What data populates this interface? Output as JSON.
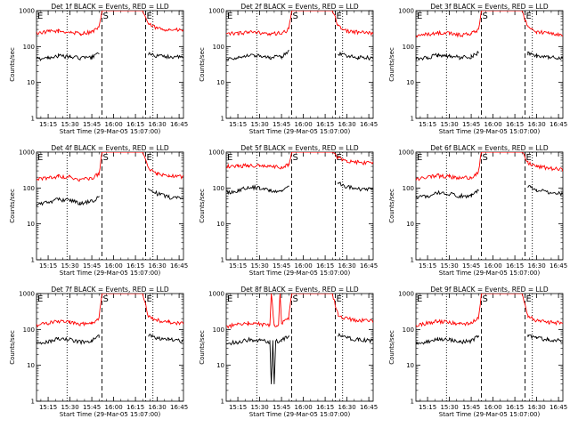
{
  "figure": {
    "background": "#ffffff",
    "axis_color": "#000000"
  },
  "chart_data": [
    {
      "type": "line",
      "title": "Det 1f BLACK = Events, RED = LLD",
      "xlabel": "Start Time (29-Mar-05 15:07:00)",
      "ylabel": "Counts/sec",
      "yscale": "log",
      "ylim": [
        1,
        1000
      ],
      "xlim": [
        "15:07",
        "16:48"
      ],
      "x_ticks": [
        "15:15",
        "15:30",
        "15:45",
        "16:00",
        "16:15",
        "16:30",
        "16:45"
      ],
      "y_ticks": [
        "1",
        "10",
        "100",
        "1000"
      ],
      "markers": [
        {
          "time": "15:28",
          "style": "dotted",
          "label": ""
        },
        {
          "time": "15:52",
          "style": "dashed",
          "label": "S"
        },
        {
          "time": "16:22",
          "style": "dashed",
          "label": "E"
        },
        {
          "time": "16:27",
          "style": "dotted",
          "label": ""
        }
      ],
      "corner_label": "E",
      "series": [
        {
          "color": "#ff0000",
          "x": [
            "15:07",
            "15:15",
            "15:22",
            "15:30",
            "15:37",
            "15:45",
            "15:50",
            "15:52",
            "16:20",
            "16:24",
            "16:30",
            "16:38",
            "16:48"
          ],
          "y": [
            240,
            260,
            270,
            250,
            230,
            260,
            330,
            1000,
            1000,
            420,
            320,
            300,
            280
          ]
        },
        {
          "color": "#000000",
          "x": [
            "15:07",
            "15:15",
            "15:22",
            "15:30",
            "15:37",
            "15:45",
            "15:50",
            "16:24",
            "16:30",
            "16:38",
            "16:48"
          ],
          "y": [
            45,
            50,
            55,
            52,
            48,
            50,
            70,
            65,
            55,
            52,
            50
          ]
        }
      ]
    },
    {
      "type": "line",
      "title": "Det 2f BLACK = Events, RED = LLD",
      "xlabel": "Start Time (29-Mar-05 15:07:00)",
      "ylabel": "Counts/sec",
      "yscale": "log",
      "ylim": [
        1,
        1000
      ],
      "xlim": [
        "15:07",
        "16:48"
      ],
      "x_ticks": [
        "15:15",
        "15:30",
        "15:45",
        "16:00",
        "16:15",
        "16:30",
        "16:45"
      ],
      "y_ticks": [
        "1",
        "10",
        "100",
        "1000"
      ],
      "markers": [
        {
          "time": "15:28",
          "style": "dotted",
          "label": ""
        },
        {
          "time": "15:52",
          "style": "dashed",
          "label": "S"
        },
        {
          "time": "16:22",
          "style": "dashed",
          "label": "E"
        },
        {
          "time": "16:27",
          "style": "dotted",
          "label": ""
        }
      ],
      "corner_label": "E",
      "series": [
        {
          "color": "#ff0000",
          "x": [
            "15:07",
            "15:15",
            "15:22",
            "15:30",
            "15:37",
            "15:45",
            "15:50",
            "15:52",
            "16:20",
            "16:24",
            "16:30",
            "16:38",
            "16:48"
          ],
          "y": [
            220,
            240,
            250,
            240,
            220,
            240,
            300,
            1000,
            1000,
            380,
            270,
            250,
            230
          ]
        },
        {
          "color": "#000000",
          "x": [
            "15:07",
            "15:15",
            "15:22",
            "15:30",
            "15:37",
            "15:45",
            "15:50",
            "16:24",
            "16:30",
            "16:38",
            "16:48"
          ],
          "y": [
            45,
            50,
            58,
            55,
            50,
            52,
            75,
            65,
            55,
            50,
            48
          ]
        }
      ]
    },
    {
      "type": "line",
      "title": "Det 3f BLACK = Events, RED = LLD",
      "xlabel": "Start Time (29-Mar-05 15:07:00)",
      "ylabel": "Counts/sec",
      "yscale": "log",
      "ylim": [
        1,
        1000
      ],
      "xlim": [
        "15:07",
        "16:48"
      ],
      "x_ticks": [
        "15:15",
        "15:30",
        "15:45",
        "16:00",
        "16:15",
        "16:30",
        "16:45"
      ],
      "y_ticks": [
        "1",
        "10",
        "100",
        "1000"
      ],
      "markers": [
        {
          "time": "15:28",
          "style": "dotted",
          "label": ""
        },
        {
          "time": "15:52",
          "style": "dashed",
          "label": "S"
        },
        {
          "time": "16:22",
          "style": "dashed",
          "label": "E"
        },
        {
          "time": "16:27",
          "style": "dotted",
          "label": ""
        }
      ],
      "corner_label": "E",
      "series": [
        {
          "color": "#ff0000",
          "x": [
            "15:07",
            "15:15",
            "15:22",
            "15:30",
            "15:37",
            "15:45",
            "15:50",
            "15:52",
            "16:20",
            "16:24",
            "16:30",
            "16:38",
            "16:48"
          ],
          "y": [
            200,
            220,
            240,
            230,
            210,
            230,
            280,
            1000,
            1000,
            350,
            260,
            240,
            220
          ]
        },
        {
          "color": "#000000",
          "x": [
            "15:07",
            "15:15",
            "15:22",
            "15:30",
            "15:37",
            "15:45",
            "15:50",
            "16:24",
            "16:30",
            "16:38",
            "16:48"
          ],
          "y": [
            45,
            50,
            58,
            55,
            50,
            52,
            70,
            65,
            55,
            50,
            48
          ]
        }
      ]
    },
    {
      "type": "line",
      "title": "Det 4f BLACK = Events, RED = LLD",
      "xlabel": "Start Time (29-Mar-05 15:07:00)",
      "ylabel": "Counts/sec",
      "yscale": "log",
      "ylim": [
        1,
        1000
      ],
      "xlim": [
        "15:07",
        "16:48"
      ],
      "x_ticks": [
        "15:15",
        "15:30",
        "15:45",
        "16:00",
        "16:15",
        "16:30",
        "16:45"
      ],
      "y_ticks": [
        "1",
        "10",
        "100",
        "1000"
      ],
      "markers": [
        {
          "time": "15:28",
          "style": "dotted",
          "label": ""
        },
        {
          "time": "15:52",
          "style": "dashed",
          "label": "S"
        },
        {
          "time": "16:22",
          "style": "dashed",
          "label": "E"
        },
        {
          "time": "16:27",
          "style": "dotted",
          "label": ""
        }
      ],
      "corner_label": "E",
      "series": [
        {
          "color": "#ff0000",
          "x": [
            "15:07",
            "15:15",
            "15:22",
            "15:30",
            "15:37",
            "15:45",
            "15:50",
            "15:52",
            "16:20",
            "16:24",
            "16:30",
            "16:38",
            "16:48"
          ],
          "y": [
            170,
            190,
            210,
            200,
            170,
            190,
            250,
            1000,
            1000,
            330,
            250,
            220,
            200
          ]
        },
        {
          "color": "#000000",
          "x": [
            "15:07",
            "15:15",
            "15:22",
            "15:30",
            "15:37",
            "15:45",
            "15:50",
            "16:24",
            "16:30",
            "16:38",
            "16:48"
          ],
          "y": [
            35,
            40,
            48,
            45,
            38,
            42,
            55,
            90,
            70,
            55,
            50
          ]
        }
      ]
    },
    {
      "type": "line",
      "title": "Det 5f BLACK = Events, RED = LLD",
      "xlabel": "Start Time (29-Mar-05 15:07:00)",
      "ylabel": "Counts/sec",
      "yscale": "log",
      "ylim": [
        1,
        1000
      ],
      "xlim": [
        "15:07",
        "16:48"
      ],
      "x_ticks": [
        "15:15",
        "15:30",
        "15:45",
        "16:00",
        "16:15",
        "16:30",
        "16:45"
      ],
      "y_ticks": [
        "1",
        "10",
        "100",
        "1000"
      ],
      "markers": [
        {
          "time": "15:28",
          "style": "dotted",
          "label": ""
        },
        {
          "time": "15:52",
          "style": "dashed",
          "label": "S"
        },
        {
          "time": "16:22",
          "style": "dashed",
          "label": "E"
        },
        {
          "time": "16:27",
          "style": "dotted",
          "label": ""
        }
      ],
      "corner_label": "E",
      "series": [
        {
          "color": "#ff0000",
          "x": [
            "15:07",
            "15:15",
            "15:22",
            "15:30",
            "15:37",
            "15:45",
            "15:50",
            "15:52",
            "16:20",
            "16:24",
            "16:30",
            "16:38",
            "16:48"
          ],
          "y": [
            400,
            410,
            430,
            420,
            390,
            380,
            450,
            1000,
            1000,
            700,
            560,
            520,
            480
          ]
        },
        {
          "color": "#000000",
          "x": [
            "15:07",
            "15:15",
            "15:22",
            "15:30",
            "15:37",
            "15:45",
            "15:50",
            "16:24",
            "16:30",
            "16:38",
            "16:48"
          ],
          "y": [
            75,
            85,
            110,
            100,
            85,
            80,
            120,
            140,
            110,
            95,
            90
          ]
        }
      ]
    },
    {
      "type": "line",
      "title": "Det 6f BLACK = Events, RED = LLD",
      "xlabel": "Start Time (29-Mar-05 15:07:00)",
      "ylabel": "Counts/sec",
      "yscale": "log",
      "ylim": [
        1,
        1000
      ],
      "xlim": [
        "15:07",
        "16:48"
      ],
      "x_ticks": [
        "15:15",
        "15:30",
        "15:45",
        "16:00",
        "16:15",
        "16:30",
        "16:45"
      ],
      "y_ticks": [
        "1",
        "10",
        "100",
        "1000"
      ],
      "markers": [
        {
          "time": "15:28",
          "style": "dotted",
          "label": ""
        },
        {
          "time": "15:52",
          "style": "dashed",
          "label": "S"
        },
        {
          "time": "16:22",
          "style": "dashed",
          "label": "E"
        },
        {
          "time": "16:27",
          "style": "dotted",
          "label": ""
        }
      ],
      "corner_label": "E",
      "series": [
        {
          "color": "#ff0000",
          "x": [
            "15:07",
            "15:15",
            "15:22",
            "15:30",
            "15:37",
            "15:45",
            "15:50",
            "15:52",
            "16:20",
            "16:24",
            "16:30",
            "16:38",
            "16:48"
          ],
          "y": [
            180,
            200,
            220,
            210,
            190,
            200,
            270,
            1000,
            1000,
            500,
            400,
            360,
            320
          ]
        },
        {
          "color": "#000000",
          "x": [
            "15:07",
            "15:15",
            "15:22",
            "15:30",
            "15:37",
            "15:45",
            "15:50",
            "16:24",
            "16:30",
            "16:38",
            "16:48"
          ],
          "y": [
            55,
            60,
            75,
            70,
            60,
            62,
            85,
            110,
            90,
            75,
            70
          ]
        }
      ]
    },
    {
      "type": "line",
      "title": "Det 7f BLACK = Events, RED = LLD",
      "xlabel": "Start Time (29-Mar-05 15:07:00)",
      "ylabel": "Counts/sec",
      "yscale": "log",
      "ylim": [
        1,
        1000
      ],
      "xlim": [
        "15:07",
        "16:48"
      ],
      "x_ticks": [
        "15:15",
        "15:30",
        "15:45",
        "16:00",
        "16:15",
        "16:30",
        "16:45"
      ],
      "y_ticks": [
        "1",
        "10",
        "100",
        "1000"
      ],
      "markers": [
        {
          "time": "15:28",
          "style": "dotted",
          "label": ""
        },
        {
          "time": "15:52",
          "style": "dashed",
          "label": "S"
        },
        {
          "time": "16:22",
          "style": "dashed",
          "label": "E"
        },
        {
          "time": "16:27",
          "style": "dotted",
          "label": ""
        }
      ],
      "corner_label": "E",
      "series": [
        {
          "color": "#ff0000",
          "x": [
            "15:07",
            "15:15",
            "15:22",
            "15:30",
            "15:37",
            "15:45",
            "15:50",
            "15:52",
            "16:20",
            "16:24",
            "16:30",
            "16:38",
            "16:48"
          ],
          "y": [
            130,
            150,
            170,
            160,
            140,
            150,
            210,
            1000,
            1000,
            230,
            180,
            160,
            150
          ]
        },
        {
          "color": "#000000",
          "x": [
            "15:07",
            "15:15",
            "15:22",
            "15:30",
            "15:37",
            "15:45",
            "15:50",
            "16:24",
            "16:30",
            "16:38",
            "16:48"
          ],
          "y": [
            40,
            45,
            55,
            52,
            45,
            48,
            65,
            70,
            58,
            52,
            48
          ]
        }
      ]
    },
    {
      "type": "line",
      "title": "Det 8f BLACK = Events, RED = LLD",
      "xlabel": "Start Time (29-Mar-05 15:07:00)",
      "ylabel": "Counts/sec",
      "yscale": "log",
      "ylim": [
        1,
        1000
      ],
      "xlim": [
        "15:07",
        "16:48"
      ],
      "x_ticks": [
        "15:15",
        "15:30",
        "15:45",
        "16:00",
        "16:15",
        "16:30",
        "16:45"
      ],
      "y_ticks": [
        "1",
        "10",
        "100",
        "1000"
      ],
      "markers": [
        {
          "time": "15:28",
          "style": "dotted",
          "label": ""
        },
        {
          "time": "15:52",
          "style": "dashed",
          "label": "S"
        },
        {
          "time": "16:22",
          "style": "dashed",
          "label": "E"
        },
        {
          "time": "16:27",
          "style": "dotted",
          "label": ""
        }
      ],
      "corner_label": "E",
      "series": [
        {
          "color": "#ff0000",
          "x": [
            "15:07",
            "15:15",
            "15:22",
            "15:30",
            "15:37",
            "15:38",
            "15:40",
            "15:43",
            "15:44",
            "15:45",
            "15:50",
            "15:52",
            "16:20",
            "16:24",
            "16:30",
            "16:38",
            "16:48"
          ],
          "y": [
            120,
            140,
            150,
            140,
            130,
            1000,
            130,
            140,
            1000,
            150,
            210,
            1000,
            1000,
            250,
            200,
            180,
            170
          ]
        },
        {
          "color": "#000000",
          "x": [
            "15:07",
            "15:15",
            "15:22",
            "15:30",
            "15:37",
            "15:38",
            "15:39",
            "15:40",
            "15:41",
            "15:45",
            "15:50",
            "16:24",
            "16:30",
            "16:38",
            "16:48"
          ],
          "y": [
            40,
            45,
            52,
            50,
            45,
            3,
            45,
            3,
            48,
            48,
            70,
            70,
            58,
            52,
            48
          ]
        }
      ]
    },
    {
      "type": "line",
      "title": "Det 9f BLACK = Events, RED = LLD",
      "xlabel": "Start Time (29-Mar-05 15:07:00)",
      "ylabel": "Counts/sec",
      "yscale": "log",
      "ylim": [
        1,
        1000
      ],
      "xlim": [
        "15:07",
        "16:48"
      ],
      "x_ticks": [
        "15:15",
        "15:30",
        "15:45",
        "16:00",
        "16:15",
        "16:30",
        "16:45"
      ],
      "y_ticks": [
        "1",
        "10",
        "100",
        "1000"
      ],
      "markers": [
        {
          "time": "15:28",
          "style": "dotted",
          "label": ""
        },
        {
          "time": "15:52",
          "style": "dashed",
          "label": "S"
        },
        {
          "time": "16:22",
          "style": "dashed",
          "label": "E"
        },
        {
          "time": "16:27",
          "style": "dotted",
          "label": ""
        }
      ],
      "corner_label": "E",
      "series": [
        {
          "color": "#ff0000",
          "x": [
            "15:07",
            "15:15",
            "15:22",
            "15:30",
            "15:37",
            "15:45",
            "15:50",
            "15:52",
            "16:20",
            "16:24",
            "16:30",
            "16:38",
            "16:48"
          ],
          "y": [
            130,
            150,
            170,
            160,
            140,
            150,
            210,
            1000,
            1000,
            230,
            180,
            160,
            150
          ]
        },
        {
          "color": "#000000",
          "x": [
            "15:07",
            "15:15",
            "15:22",
            "15:30",
            "15:37",
            "15:45",
            "15:50",
            "16:24",
            "16:30",
            "16:38",
            "16:48"
          ],
          "y": [
            40,
            45,
            55,
            52,
            45,
            48,
            65,
            70,
            58,
            52,
            48
          ]
        }
      ]
    }
  ]
}
